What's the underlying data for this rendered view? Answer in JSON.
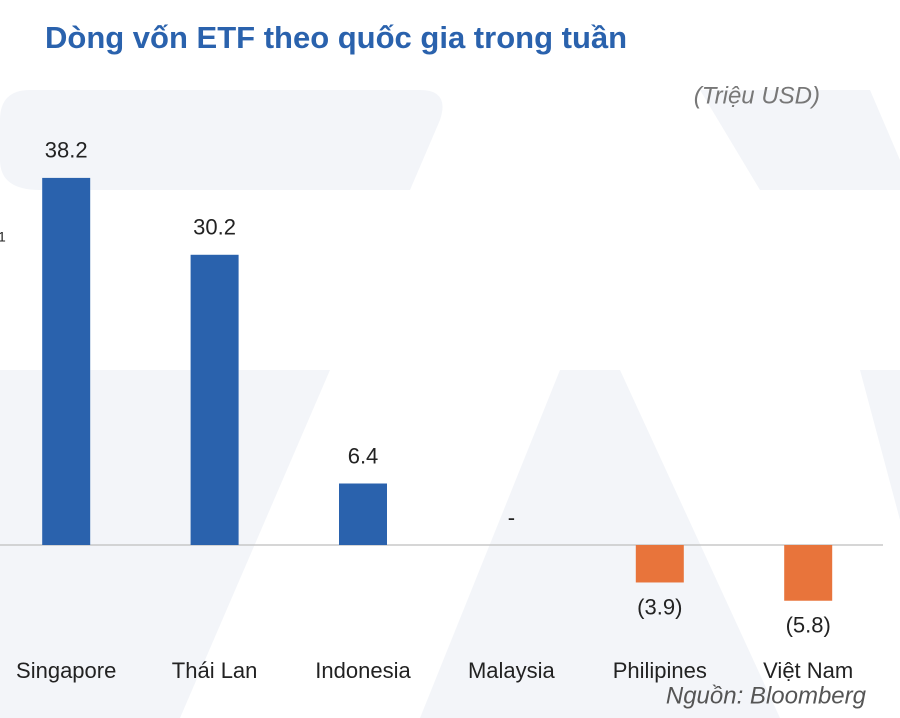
{
  "chart_data": {
    "type": "bar",
    "title": "Dòng vốn ETF theo quốc gia trong tuần",
    "subtitle": "(Triệu USD)",
    "source": "Nguồn: Bloomberg",
    "edge_text": "1",
    "categories": [
      "Singapore",
      "Thái Lan",
      "Indonesia",
      "Malaysia",
      "Philipines",
      "Việt Nam"
    ],
    "values": [
      38.2,
      30.2,
      6.4,
      0,
      -3.9,
      -5.8
    ],
    "value_labels": [
      "38.2",
      "30.2",
      "6.4",
      "-",
      "(3.9)",
      "(5.8)"
    ],
    "positive_color": "#2a62ad",
    "negative_color": "#e8743b"
  }
}
